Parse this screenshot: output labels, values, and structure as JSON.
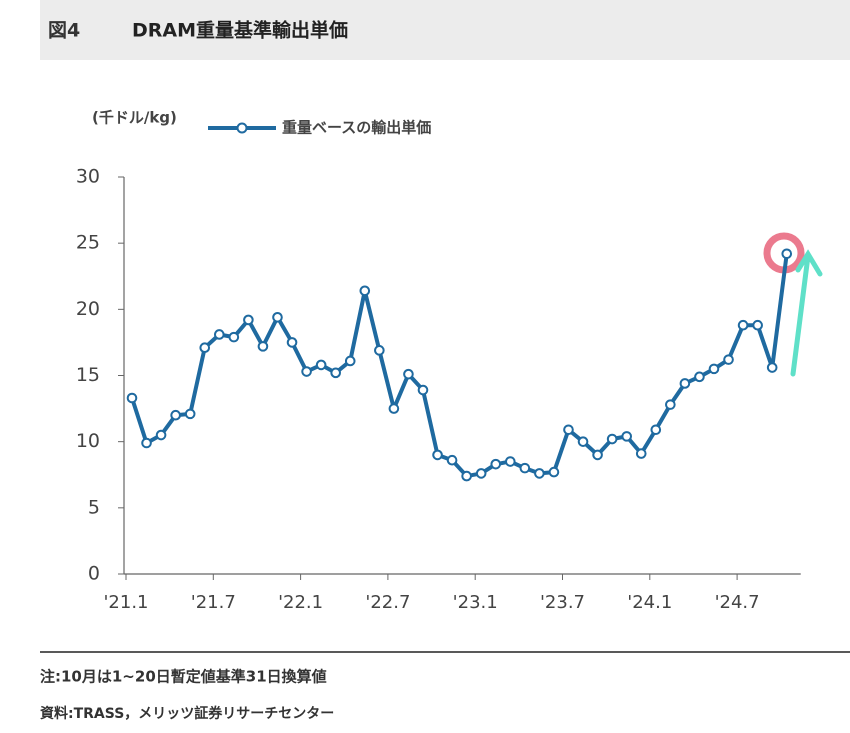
{
  "chart_data": {
    "type": "line",
    "figure_number": "図4",
    "title": "DRAM重量基準輸出単価",
    "y_unit": "(千ドル/kg)",
    "categories": [
      "'21.1",
      null,
      null,
      null,
      null,
      null,
      "'21.7",
      null,
      null,
      null,
      null,
      null,
      "'22.1",
      null,
      null,
      null,
      null,
      null,
      "'22.7",
      null,
      null,
      null,
      null,
      null,
      "'23.1",
      null,
      null,
      null,
      null,
      null,
      "'23.7",
      null,
      null,
      null,
      null,
      null,
      "'24.1",
      null,
      null,
      null,
      null,
      null,
      "'24.7",
      null,
      null,
      null
    ],
    "series": [
      {
        "name": "重量ベースの輸出単価",
        "color": "#1f6aa0",
        "values": [
          13.3,
          9.9,
          10.5,
          12.0,
          12.1,
          17.1,
          18.1,
          17.9,
          19.2,
          17.2,
          19.4,
          17.5,
          15.3,
          15.8,
          15.2,
          16.1,
          21.4,
          16.9,
          12.5,
          15.1,
          13.9,
          9.0,
          8.6,
          7.4,
          7.6,
          8.3,
          8.5,
          8.0,
          7.6,
          7.7,
          10.9,
          10.0,
          9.0,
          10.2,
          10.4,
          9.1,
          10.9,
          12.8,
          14.4,
          14.9,
          15.5,
          16.2,
          18.8,
          18.8,
          15.6,
          24.2
        ]
      }
    ],
    "ylim": [
      0,
      30
    ],
    "yticks": [
      0,
      5,
      10,
      15,
      20,
      25,
      30
    ],
    "grid": false,
    "notes": [
      "注:10月は1~20日暫定値基準31日換算値",
      "資料:TRASS，メリッツ証券リサーチセンター"
    ]
  }
}
